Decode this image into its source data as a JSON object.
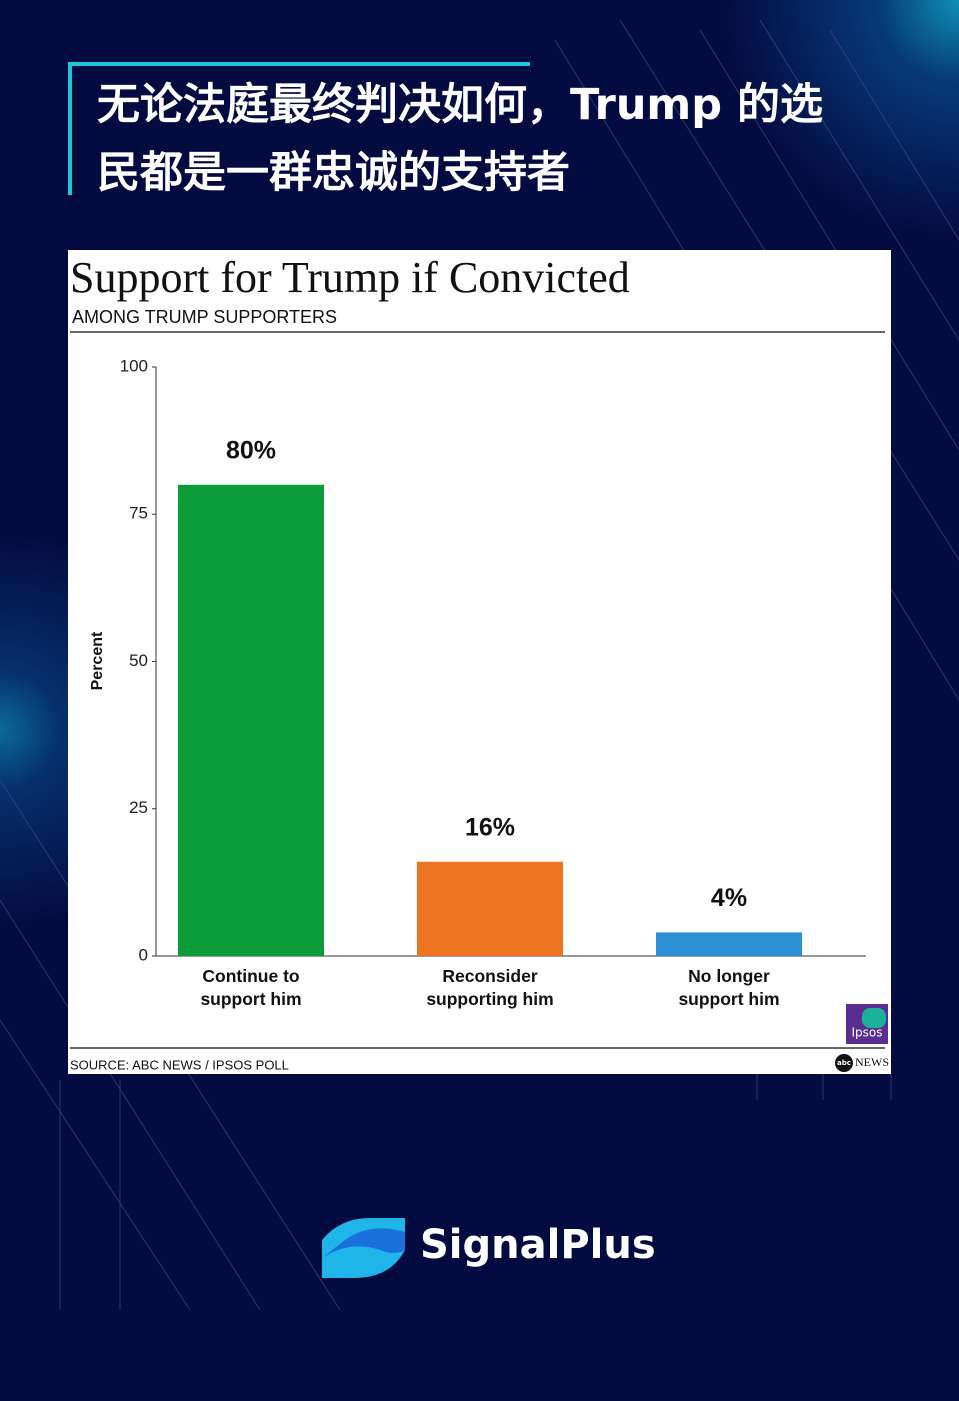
{
  "header": {
    "title_lines": [
      "无论法庭最终判决如何，Trump 的选",
      "民都是一群忠诚的支持者"
    ]
  },
  "chart_data": {
    "type": "bar",
    "title": "Support for Trump if Convicted",
    "subtitle": "AMONG TRUMP SUPPORTERS",
    "y_label": "Percent",
    "categories": [
      "Continue to support him",
      "Reconsider supporting him",
      "No longer support him"
    ],
    "values": [
      80,
      16,
      4
    ],
    "value_labels": [
      "80%",
      "16%",
      "4%"
    ],
    "colors": [
      "#0c9c3a",
      "#ee7320",
      "#2b8fd6"
    ],
    "ylim": [
      0,
      100
    ],
    "yticks": [
      0,
      25,
      50,
      75,
      100
    ],
    "grid": false,
    "source": "SOURCE: ABC NEWS / IPSOS POLL"
  },
  "logos": {
    "ipsos": "Ipsos",
    "abc": "abc",
    "news": "NEWS"
  },
  "brand": "SignalPlus"
}
